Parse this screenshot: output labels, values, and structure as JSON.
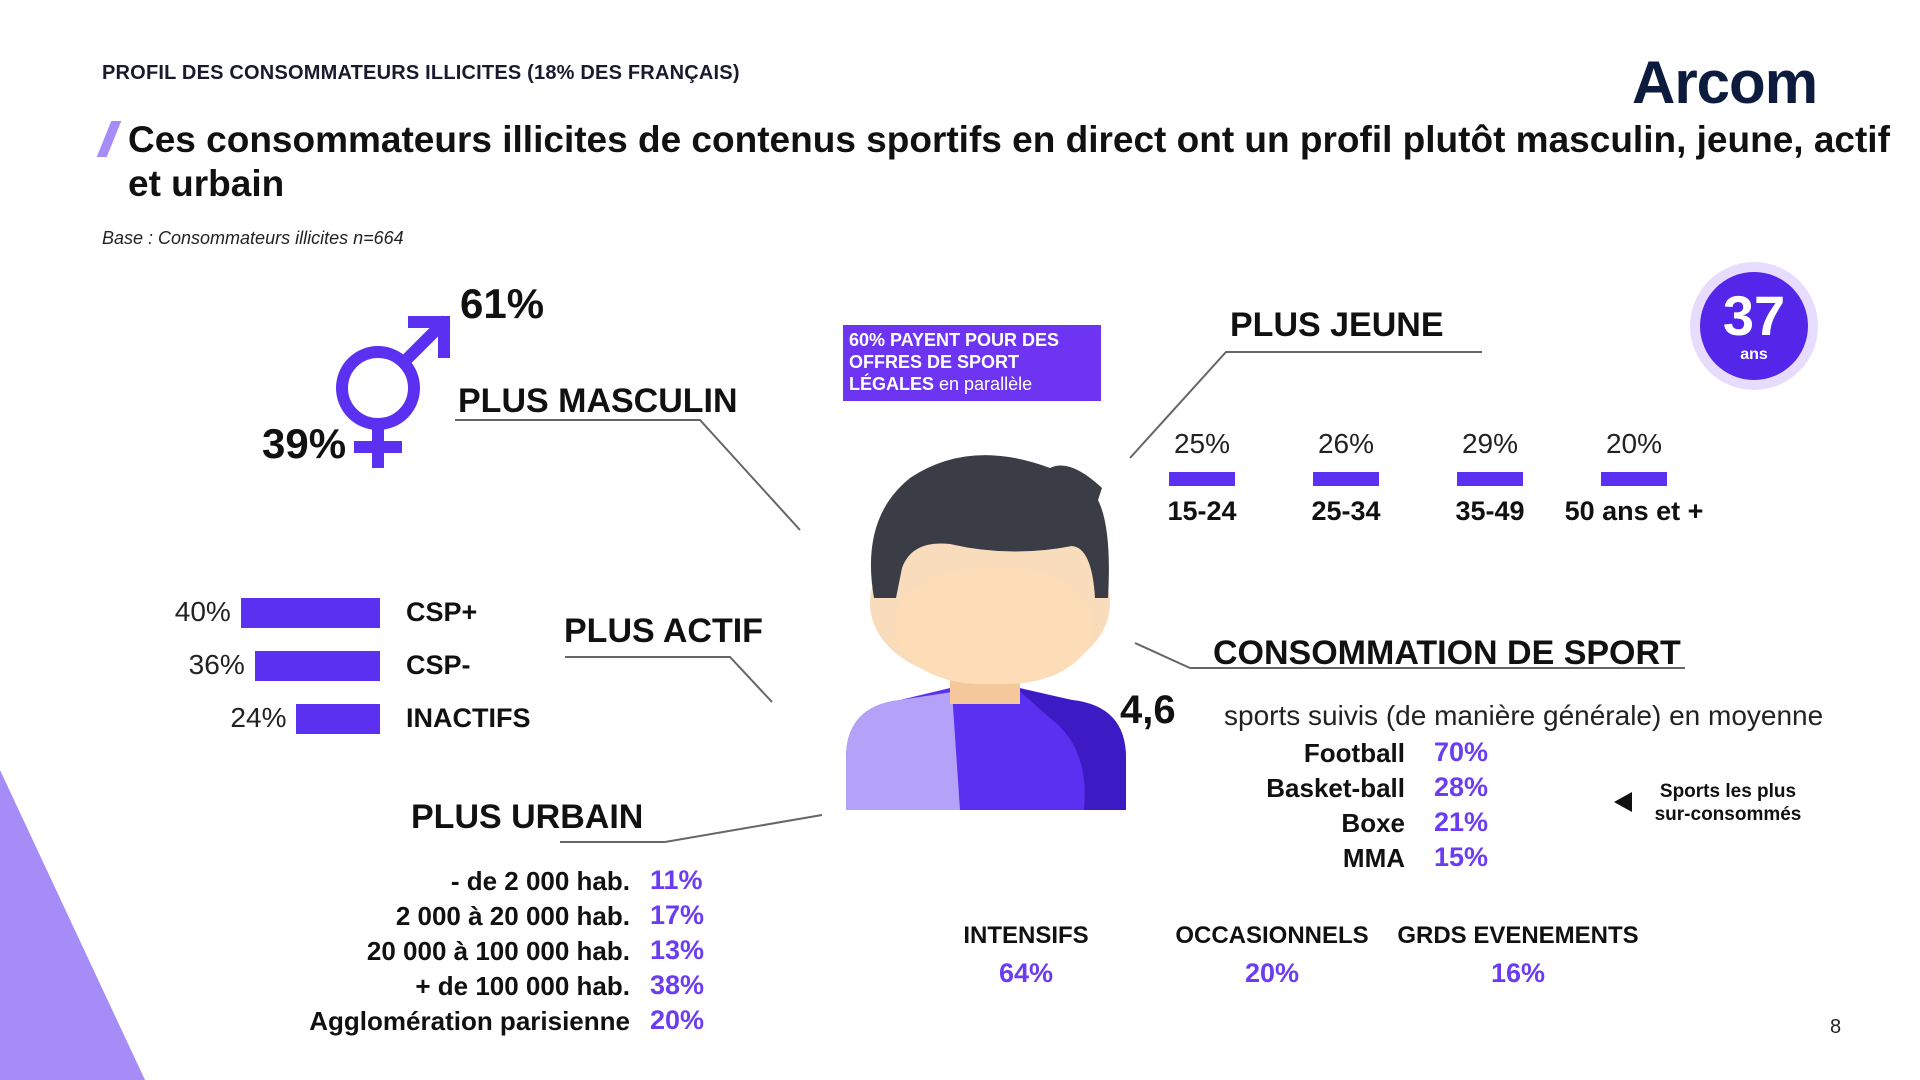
{
  "header": {
    "kicker": "PROFIL DES CONSOMMATEURS ILLICITES (18% DES FRANÇAIS)",
    "logo": "Arcom",
    "title": "Ces consommateurs illicites de contenus sportifs en direct ont un profil plutôt masculin, jeune, actif et urbain",
    "base": "Base : Consommateurs illicites n=664"
  },
  "gender": {
    "section": "PLUS MASCULIN",
    "male_pct": "61%",
    "female_pct": "39%",
    "icon": "gender-male-female-icon"
  },
  "callout": {
    "line1": "60% PAYENT POUR DES",
    "line2": "OFFRES DE SPORT",
    "line3_bold": "LÉGALES",
    "line3_rest": " en parallèle"
  },
  "age": {
    "section": "PLUS JEUNE",
    "badge_value": "37",
    "badge_unit": "ans",
    "groups": [
      {
        "label": "15-24",
        "pct": "25%",
        "value": 25
      },
      {
        "label": "25-34",
        "pct": "26%",
        "value": 26
      },
      {
        "label": "35-49",
        "pct": "29%",
        "value": 29
      },
      {
        "label": "50 ans et +",
        "pct": "20%",
        "value": 20
      }
    ]
  },
  "activity": {
    "section": "PLUS ACTIF",
    "rows": [
      {
        "label": "CSP+",
        "pct": "40%",
        "value": 40
      },
      {
        "label": "CSP-",
        "pct": "36%",
        "value": 36
      },
      {
        "label": "INACTIFS",
        "pct": "24%",
        "value": 24
      }
    ]
  },
  "urban": {
    "section": "PLUS URBAIN",
    "rows": [
      {
        "label": "- de 2 000 hab.",
        "pct": "11%"
      },
      {
        "label": "2 000 à 20 000 hab.",
        "pct": "17%"
      },
      {
        "label": "20 000 à 100 000 hab.",
        "pct": "13%"
      },
      {
        "label": "+ de 100 000 hab.",
        "pct": "38%"
      },
      {
        "label": "Agglomération parisienne",
        "pct": "20%"
      }
    ]
  },
  "sport": {
    "section": "CONSOMMATION DE SPORT",
    "avg": "4,6",
    "avg_text": "sports suivis (de manière générale) en moyenne",
    "sports": [
      {
        "label": "Football",
        "pct": "70%"
      },
      {
        "label": "Basket-ball",
        "pct": "28%"
      },
      {
        "label": "Boxe",
        "pct": "21%"
      },
      {
        "label": "MMA",
        "pct": "15%"
      }
    ],
    "note_line1": "Sports les plus",
    "note_line2": "sur-consommés",
    "profiles": [
      {
        "label": "INTENSIFS",
        "pct": "64%"
      },
      {
        "label": "OCCASIONNELS",
        "pct": "20%"
      },
      {
        "label": "GRDS EVENEMENTS",
        "pct": "16%"
      }
    ]
  },
  "page_number": "8",
  "colors": {
    "accent": "#5b30f0",
    "accent_light": "#a58cf7",
    "text": "#111111"
  }
}
